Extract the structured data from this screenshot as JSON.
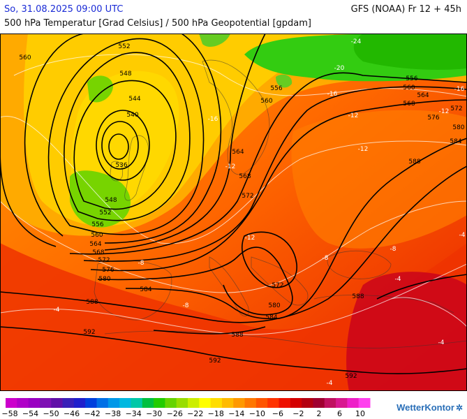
{
  "header": {
    "datetime": "So, 31.08.2025 09:00 UTC",
    "model_run": "GFS (NOAA) Fr 12 + 45h",
    "parameters": "500 hPa Temperatur [Grad Celsius] / 500 hPa Geopotential [gpdam]"
  },
  "map": {
    "geopotential_labels": [
      "560",
      "552",
      "548",
      "544",
      "540",
      "536",
      "548",
      "552",
      "556",
      "560",
      "564",
      "568",
      "572",
      "576",
      "580",
      "584",
      "588",
      "592",
      "588",
      "592",
      "556",
      "560",
      "564",
      "568",
      "572",
      "576",
      "580",
      "584",
      "588",
      "564",
      "568",
      "572",
      "572",
      "580",
      "584",
      "588",
      "592",
      "560",
      "556",
      "560",
      "564",
      "568",
      "572",
      "580",
      "584",
      "588"
    ],
    "temperature_labels": [
      "-24",
      "-20",
      "-16",
      "-12",
      "-12",
      "-8",
      "-4",
      "-4",
      "-8",
      "-4",
      "-12",
      "-16",
      "-12",
      "-8",
      "-4",
      "-4",
      "-8",
      "-12",
      "-16"
    ],
    "colors": {
      "cold_green": "#33cc11",
      "yellow": "#ffcc00",
      "orange": "#ff9900",
      "orange_red": "#ff6a00",
      "red": "#ee2a00",
      "dark_red": "#c40018"
    }
  },
  "legend": {
    "ticks": [
      "-58",
      "-54",
      "-50",
      "-46",
      "-42",
      "-38",
      "-34",
      "-30",
      "-26",
      "-22",
      "-18",
      "-14",
      "-10",
      "-6",
      "-2",
      "2",
      "6",
      "10"
    ],
    "colors": [
      "#cc00cc",
      "#b000c8",
      "#9a00c2",
      "#7e10b4",
      "#6010a8",
      "#3a20b8",
      "#2020cc",
      "#0040dd",
      "#0070e6",
      "#0098e8",
      "#00b8e0",
      "#00c8a8",
      "#00c040",
      "#22cc00",
      "#66d400",
      "#99dd00",
      "#ccee00",
      "#ffff00",
      "#ffdd00",
      "#ffbb00",
      "#ff9900",
      "#ff7700",
      "#ff5500",
      "#ff3300",
      "#ee1100",
      "#d40000",
      "#b40010",
      "#a00030",
      "#c01060",
      "#d81890",
      "#ee20c8",
      "#ff40ee"
    ]
  },
  "brand": {
    "name": "WetterKontor"
  }
}
